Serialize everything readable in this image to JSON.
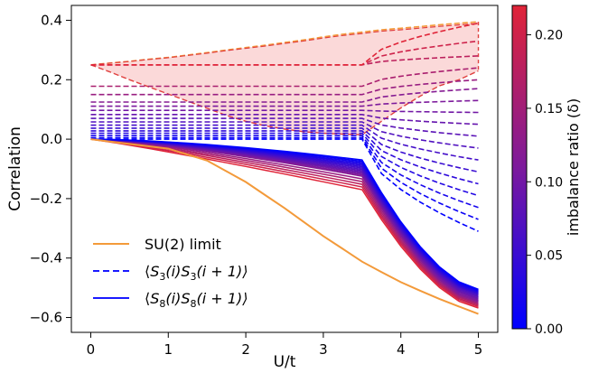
{
  "chart_data": {
    "type": "line",
    "title": "",
    "xlabel": "U/t",
    "ylabel": "Correlation",
    "xlim": [
      -0.25,
      5.25
    ],
    "ylim": [
      -0.65,
      0.45
    ],
    "x_ticks": [
      0,
      1,
      2,
      3,
      4,
      5
    ],
    "x_tick_labels": [
      "0",
      "1",
      "2",
      "3",
      "4",
      "5"
    ],
    "y_ticks": [
      -0.6,
      -0.4,
      -0.2,
      0.0,
      0.2,
      0.4
    ],
    "y_tick_labels": [
      "−0.6",
      "−0.4",
      "−0.2",
      "0.0",
      "0.2",
      "0.4"
    ],
    "grid": false,
    "legend_placement": "lower-left",
    "x": [
      0,
      0.25,
      0.5,
      0.75,
      1.0,
      1.25,
      1.5,
      1.75,
      2.0,
      2.25,
      2.5,
      2.75,
      3.0,
      3.25,
      3.5,
      3.75,
      4.0,
      4.25,
      4.5,
      4.75,
      5.0
    ],
    "su2_limit": {
      "name": "SU(2) limit",
      "color": "#f39a3a",
      "values": [
        0.0,
        -0.008,
        -0.016,
        -0.024,
        -0.032,
        -0.052,
        -0.072,
        -0.108,
        -0.144,
        -0.188,
        -0.232,
        -0.279,
        -0.326,
        -0.369,
        -0.412,
        -0.447,
        -0.481,
        -0.51,
        -0.538,
        -0.563,
        -0.588
      ]
    },
    "s3_family": {
      "name": "⟨S3(i)S3(i+1)⟩",
      "line_style": "dashed",
      "deltas": [
        0.0,
        0.01,
        0.02,
        0.03,
        0.04,
        0.05,
        0.06,
        0.07,
        0.08,
        0.09,
        0.1,
        0.11,
        0.12,
        0.14,
        0.16,
        0.18,
        0.2,
        0.22
      ],
      "start_values": [
        0.0,
        0.005,
        0.012,
        0.02,
        0.028,
        0.037,
        0.047,
        0.058,
        0.07,
        0.083,
        0.097,
        0.111,
        0.125,
        0.15,
        0.178,
        0.25,
        0.25,
        0.25
      ],
      "end_values": [
        -0.31,
        -0.27,
        -0.23,
        -0.19,
        -0.15,
        -0.11,
        -0.07,
        -0.03,
        0.01,
        0.05,
        0.09,
        0.13,
        0.17,
        0.2,
        0.24,
        0.28,
        0.33,
        0.39
      ]
    },
    "s8_family": {
      "name": "⟨S8(i)S8(i+1)⟩",
      "line_style": "solid",
      "deltas": [
        0.0,
        0.01,
        0.02,
        0.03,
        0.04,
        0.05,
        0.06,
        0.07,
        0.08,
        0.09,
        0.1,
        0.11,
        0.12,
        0.14,
        0.16,
        0.18,
        0.2,
        0.22
      ],
      "end_values": [
        -0.505,
        -0.508,
        -0.511,
        -0.514,
        -0.517,
        -0.52,
        -0.523,
        -0.527,
        -0.531,
        -0.535,
        -0.539,
        -0.543,
        -0.547,
        -0.551,
        -0.555,
        -0.559,
        -0.563,
        -0.568
      ]
    },
    "envelope": {
      "upper": [
        0.25,
        0.256,
        0.262,
        0.269,
        0.275,
        0.283,
        0.291,
        0.3,
        0.308,
        0.316,
        0.325,
        0.334,
        0.344,
        0.353,
        0.36,
        0.368,
        0.373,
        0.379,
        0.385,
        0.39,
        0.395
      ],
      "lower": [
        0.25,
        0.226,
        0.2,
        0.176,
        0.152,
        0.128,
        0.104,
        0.08,
        0.06,
        0.045,
        0.034,
        0.025,
        0.02,
        0.017,
        0.015,
        0.06,
        0.105,
        0.145,
        0.18,
        0.2,
        0.23
      ],
      "colors": [
        "#f39a3a",
        "#e0403f"
      ]
    },
    "colorbar": {
      "label": "imbalance ratio (δ)",
      "min": 0.0,
      "max": 0.22,
      "ticks": [
        0.0,
        0.05,
        0.1,
        0.15,
        0.2
      ],
      "tick_labels": [
        "0.00",
        "0.05",
        "0.10",
        "0.15",
        "0.20"
      ],
      "colors": [
        "#0000ff",
        "#e02438"
      ]
    },
    "legend": {
      "su2": "SU(2) limit",
      "s3_prefix": "⟨",
      "s3_S": "S",
      "s3_sub": "3",
      "s3_mid": "(i)",
      "s3_S2": "S",
      "s3_sub2": "3",
      "s3_end": "(i + 1)⟩",
      "s8_prefix": "⟨",
      "s8_S": "S",
      "s8_sub": "8",
      "s8_mid": "(i)",
      "s8_S2": "S",
      "s8_sub2": "8",
      "s8_end": "(i + 1)⟩"
    }
  }
}
